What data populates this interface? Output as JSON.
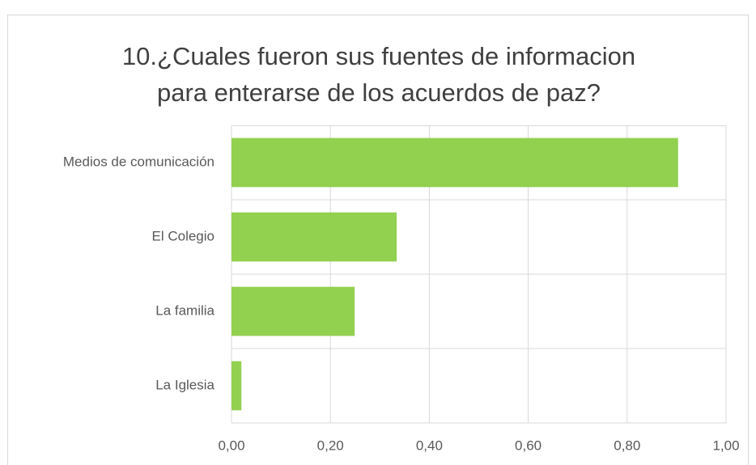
{
  "chart_data": {
    "type": "bar",
    "orientation": "horizontal",
    "title": [
      "10.¿Cuales fueron sus fuentes de informacion",
      "para enterarse de los acuerdos de paz?"
    ],
    "categories": [
      "Medios de comunicación",
      "El Colegio",
      "La familia",
      "La Iglesia"
    ],
    "values": [
      0.903,
      0.334,
      0.249,
      0.02
    ],
    "color": "#92d050",
    "xlim": [
      0,
      1
    ],
    "xticks": [
      {
        "value": 0,
        "label": "0,00"
      },
      {
        "value": 0.2,
        "label": "0,20"
      },
      {
        "value": 0.4,
        "label": "0,40"
      },
      {
        "value": 0.6,
        "label": "0,60"
      },
      {
        "value": 0.8,
        "label": "0,80"
      },
      {
        "value": 1,
        "label": "1,00"
      }
    ],
    "grid": true
  }
}
